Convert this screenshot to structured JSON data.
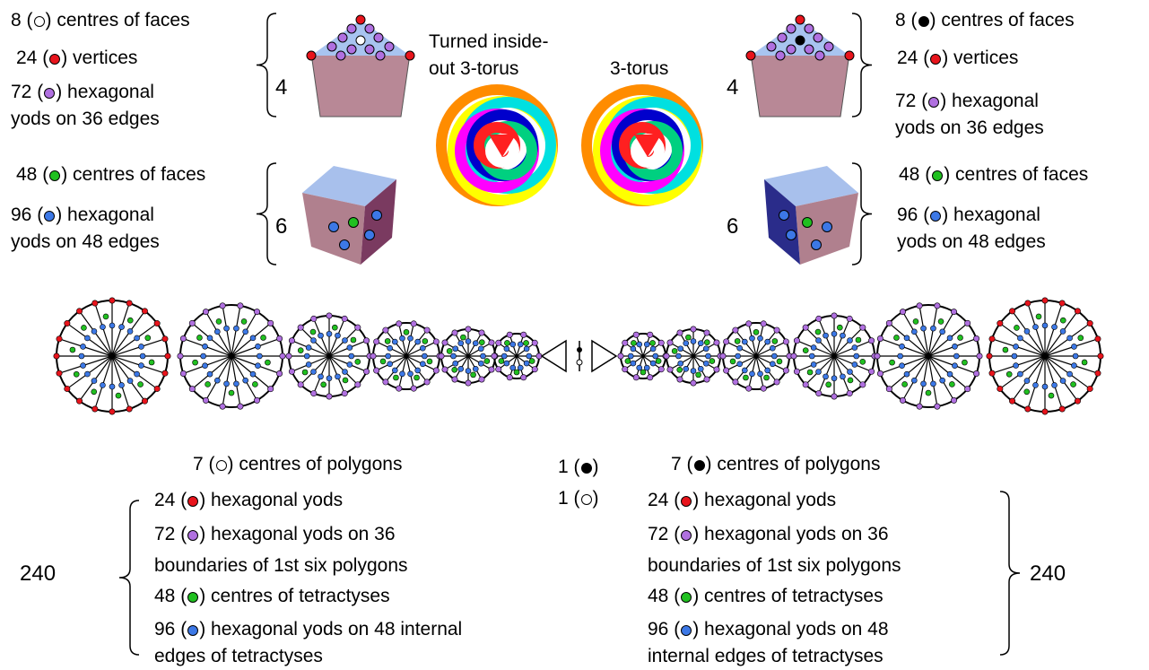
{
  "labels": [
    {
      "prefix": "8 (",
      "dot": "#ffffff",
      "lines": [
        ") centres of faces"
      ]
    },
    {
      "prefix": "24 (",
      "dot": "#e8141c",
      "lines": [
        ") vertices"
      ]
    },
    {
      "prefix": "72 (",
      "dot": "#b070e0",
      "lines": [
        ") hexagonal",
        "yods on 36 edges"
      ]
    },
    {
      "prefix": "48 (",
      "dot": "#20c020",
      "lines": [
        ") centres of faces"
      ]
    },
    {
      "prefix": "96 (",
      "dot": "#3c78e6",
      "lines": [
        ") hexagonal",
        "yods on 48 edges"
      ]
    },
    {
      "prefix": "8 (",
      "dot": "#000000",
      "lines": [
        ") centres of faces"
      ]
    },
    {
      "prefix": "24 (",
      "dot": "#e8141c",
      "lines": [
        ") vertices"
      ]
    },
    {
      "prefix": "72 (",
      "dot": "#b070e0",
      "lines": [
        ") hexagonal",
        "yods on 36 edges"
      ]
    },
    {
      "prefix": "48 (",
      "dot": "#20c020",
      "lines": [
        ") centres of faces"
      ]
    },
    {
      "prefix": "96 (",
      "dot": "#3c78e6",
      "lines": [
        ") hexagonal",
        "yods on 48 edges"
      ]
    },
    {
      "prefix": "7 (",
      "dot": "#ffffff",
      "lines": [
        ") centres of polygons"
      ]
    },
    {
      "prefix": "1 (",
      "dot": "#000000",
      "lines": [
        ")"
      ]
    },
    {
      "prefix": "1 (",
      "dot": "#ffffff",
      "lines": [
        ")"
      ]
    },
    {
      "prefix": "7 (",
      "dot": "#000000",
      "lines": [
        ") centres of polygons"
      ]
    },
    {
      "prefix": "24 (",
      "dot": "#e8141c",
      "lines": [
        ") hexagonal yods"
      ]
    },
    {
      "prefix": "72 (",
      "dot": "#b070e0",
      "lines": [
        ") hexagonal yods on 36",
        "boundaries of 1st six polygons"
      ]
    },
    {
      "prefix": "48 (",
      "dot": "#20c020",
      "lines": [
        ") centres of tetractyses"
      ]
    },
    {
      "prefix": "96 (",
      "dot": "#3c78e6",
      "lines": [
        ") hexagonal yods on 48 internal",
        "edges of tetractyses"
      ]
    },
    {
      "prefix": "24 (",
      "dot": "#e8141c",
      "lines": [
        ") hexagonal yods"
      ]
    },
    {
      "prefix": "72 (",
      "dot": "#b070e0",
      "lines": [
        ") hexagonal yods on 36",
        "boundaries of 1st six polygons"
      ]
    },
    {
      "prefix": "48 (",
      "dot": "#20c020",
      "lines": [
        ") centres of tetractyses"
      ]
    },
    {
      "prefix": "96 (",
      "dot": "#3c78e6",
      "lines": [
        ") hexagonal yods on 48",
        "internal edges of tetractyses"
      ]
    }
  ],
  "brace_numbers": [
    "4",
    "6",
    "4",
    "6",
    "240",
    "240"
  ],
  "torus_labels": [
    [
      "Turned inside-",
      "out 3-torus"
    ],
    [
      "3-torus"
    ]
  ]
}
